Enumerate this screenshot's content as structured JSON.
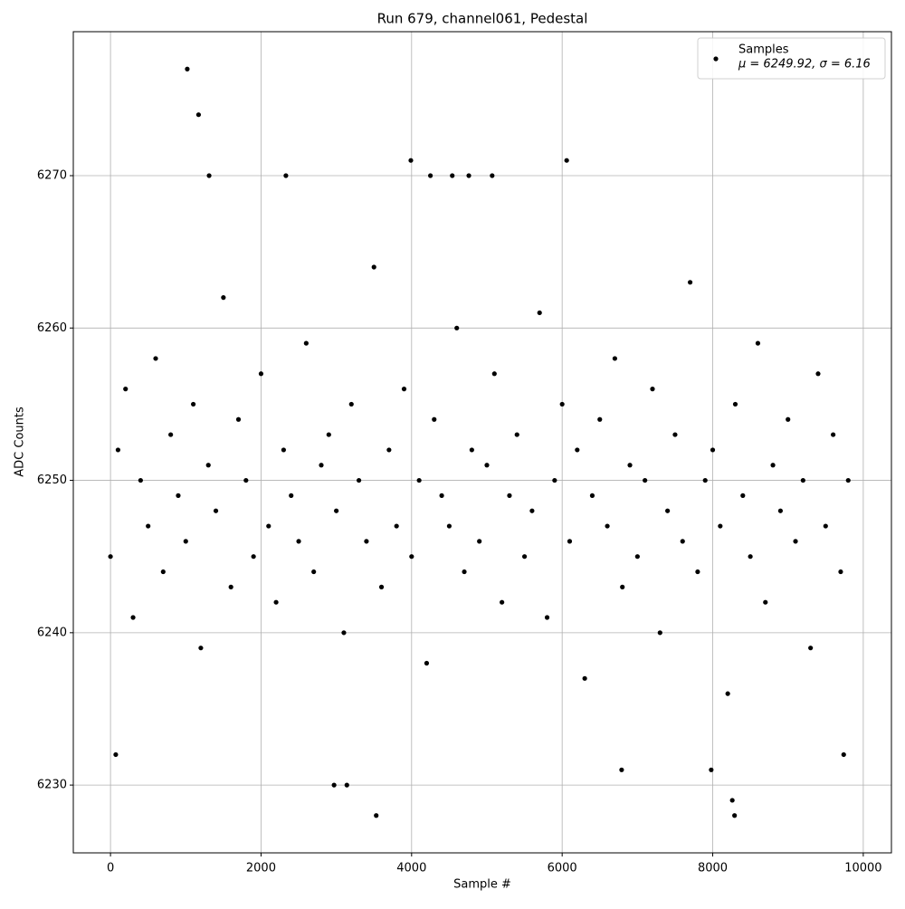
{
  "chart_data": {
    "type": "scatter",
    "title": "Run 679, channel061, Pedestal",
    "x_label": "Sample #",
    "y_label": "ADC Counts",
    "xlim": [
      -494,
      10374
    ],
    "ylim": [
      6225.55,
      6279.45
    ],
    "xticks": [
      0,
      2000,
      4000,
      6000,
      8000,
      10000
    ],
    "yticks": [
      6230,
      6240,
      6250,
      6260,
      6270
    ],
    "grid": true,
    "legend_position": "upper right",
    "legend_note": "μ = 6249.92, σ = 6.16",
    "series": [
      {
        "name": "Samples",
        "color": "#000000",
        "x": [
          0,
          100,
          200,
          300,
          400,
          500,
          600,
          700,
          800,
          900,
          1000,
          1100,
          1200,
          1300,
          1400,
          1500,
          1600,
          1700,
          1800,
          1900,
          2000,
          2100,
          2200,
          2300,
          2400,
          2500,
          2600,
          2700,
          2800,
          2900,
          3000,
          3100,
          3200,
          3300,
          3400,
          3500,
          3600,
          3700,
          3800,
          3900,
          4000,
          4100,
          4200,
          4300,
          4400,
          4500,
          4600,
          4700,
          4800,
          4900,
          5000,
          5100,
          5200,
          5300,
          5400,
          5500,
          5600,
          5700,
          5800,
          5900,
          6000,
          6100,
          6200,
          6300,
          6400,
          6500,
          6600,
          6700,
          6800,
          6900,
          7000,
          7100,
          7200,
          7300,
          7400,
          7500,
          7600,
          7700,
          7800,
          7900,
          8000,
          8100,
          8200,
          8300,
          8400,
          8500,
          8600,
          8700,
          8800,
          8900,
          9000,
          9100,
          9200,
          9300,
          9400,
          9500,
          9600,
          9700,
          9800,
          1020,
          1170,
          3530,
          8290,
          8260,
          2970,
          3140,
          6790,
          7980,
          3990,
          6060,
          1310,
          2330,
          4250,
          4540,
          4760,
          5070,
          70,
          9740
        ],
        "values": [
          6245,
          6252,
          6256,
          6241,
          6250,
          6247,
          6258,
          6244,
          6253,
          6249,
          6246,
          6255,
          6239,
          6251,
          6248,
          6262,
          6243,
          6254,
          6250,
          6245,
          6257,
          6247,
          6242,
          6252,
          6249,
          6246,
          6259,
          6244,
          6251,
          6253,
          6248,
          6240,
          6255,
          6250,
          6246,
          6264,
          6243,
          6252,
          6247,
          6256,
          6245,
          6250,
          6238,
          6254,
          6249,
          6247,
          6260,
          6244,
          6252,
          6246,
          6251,
          6257,
          6242,
          6249,
          6253,
          6245,
          6248,
          6261,
          6241,
          6250,
          6255,
          6246,
          6252,
          6237,
          6249,
          6254,
          6247,
          6258,
          6243,
          6251,
          6245,
          6250,
          6256,
          6240,
          6248,
          6253,
          6246,
          6263,
          6244,
          6250,
          6252,
          6247,
          6236,
          6255,
          6249,
          6245,
          6259,
          6242,
          6251,
          6248,
          6254,
          6246,
          6250,
          6239,
          6257,
          6247,
          6253,
          6244,
          6250,
          6277,
          6274,
          6228,
          6228,
          6229,
          6230,
          6230,
          6231,
          6231,
          6271,
          6271,
          6270,
          6270,
          6270,
          6270,
          6270,
          6270,
          6232,
          6232
        ]
      }
    ]
  }
}
